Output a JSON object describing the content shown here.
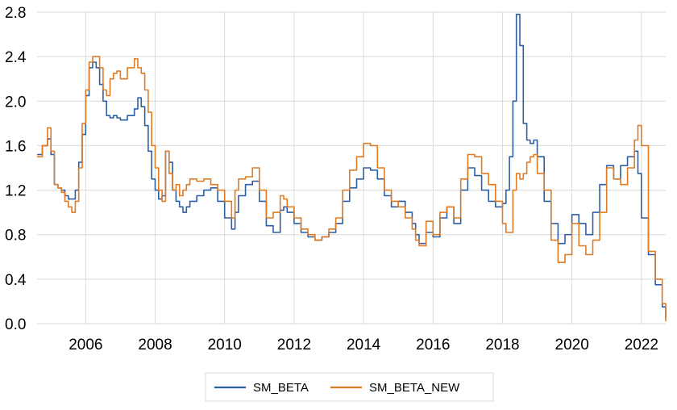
{
  "chart_data": {
    "type": "line",
    "title": "",
    "xlabel": "",
    "ylabel": "",
    "xlim": [
      2004.6,
      2022.7
    ],
    "ylim": [
      0,
      2.8
    ],
    "y_ticks": [
      0.0,
      0.4,
      0.8,
      1.2,
      1.6,
      2.0,
      2.4,
      2.8
    ],
    "y_tick_labels": [
      "0.0",
      "0.4",
      "0.8",
      "1.2",
      "1.6",
      "2.0",
      "2.4",
      "2.8"
    ],
    "x_ticks": [
      2006,
      2008,
      2010,
      2012,
      2014,
      2016,
      2018,
      2020,
      2022
    ],
    "x_tick_labels": [
      "2006",
      "2008",
      "2010",
      "2012",
      "2014",
      "2016",
      "2018",
      "2020",
      "2022"
    ],
    "grid": "vertical-and-horizontal",
    "legend_position": "bottom",
    "series": [
      {
        "name": "SM_BETA",
        "color": "#2e5fa3",
        "x": [
          2004.6,
          2004.75,
          2004.9,
          2005.0,
          2005.1,
          2005.2,
          2005.3,
          2005.4,
          2005.5,
          2005.6,
          2005.7,
          2005.8,
          2005.9,
          2006.0,
          2006.1,
          2006.2,
          2006.3,
          2006.4,
          2006.5,
          2006.6,
          2006.7,
          2006.8,
          2006.9,
          2007.0,
          2007.2,
          2007.4,
          2007.5,
          2007.6,
          2007.7,
          2007.8,
          2007.9,
          2008.0,
          2008.1,
          2008.2,
          2008.3,
          2008.4,
          2008.5,
          2008.6,
          2008.7,
          2008.8,
          2008.9,
          2009.0,
          2009.2,
          2009.4,
          2009.6,
          2009.8,
          2010.0,
          2010.2,
          2010.3,
          2010.4,
          2010.6,
          2010.8,
          2011.0,
          2011.2,
          2011.4,
          2011.6,
          2011.7,
          2011.8,
          2012.0,
          2012.2,
          2012.4,
          2012.6,
          2012.8,
          2013.0,
          2013.2,
          2013.4,
          2013.6,
          2013.8,
          2014.0,
          2014.2,
          2014.4,
          2014.6,
          2014.8,
          2015.0,
          2015.2,
          2015.4,
          2015.5,
          2015.6,
          2015.8,
          2016.0,
          2016.2,
          2016.4,
          2016.6,
          2016.8,
          2017.0,
          2017.2,
          2017.4,
          2017.6,
          2017.8,
          2018.0,
          2018.1,
          2018.2,
          2018.3,
          2018.4,
          2018.5,
          2018.6,
          2018.7,
          2018.8,
          2018.9,
          2019.0,
          2019.2,
          2019.4,
          2019.6,
          2019.8,
          2020.0,
          2020.2,
          2020.4,
          2020.6,
          2020.8,
          2021.0,
          2021.2,
          2021.4,
          2021.6,
          2021.8,
          2021.9,
          2022.0,
          2022.2,
          2022.4,
          2022.6,
          2022.7
        ],
        "y": [
          1.52,
          1.6,
          1.66,
          1.52,
          1.25,
          1.22,
          1.2,
          1.15,
          1.12,
          1.12,
          1.2,
          1.45,
          1.7,
          2.05,
          2.3,
          2.35,
          2.3,
          2.15,
          2.0,
          1.87,
          1.85,
          1.87,
          1.85,
          1.83,
          1.87,
          1.93,
          2.03,
          1.95,
          1.78,
          1.55,
          1.3,
          1.2,
          1.12,
          1.15,
          1.55,
          1.45,
          1.2,
          1.1,
          1.05,
          1.0,
          1.05,
          1.1,
          1.15,
          1.2,
          1.22,
          1.1,
          0.95,
          0.85,
          1.0,
          1.15,
          1.25,
          1.28,
          1.1,
          0.88,
          0.82,
          1.02,
          1.05,
          1.0,
          0.9,
          0.82,
          0.78,
          0.75,
          0.78,
          0.82,
          0.9,
          1.1,
          1.22,
          1.3,
          1.4,
          1.38,
          1.3,
          1.15,
          1.05,
          1.1,
          1.0,
          0.9,
          0.8,
          0.72,
          0.82,
          0.78,
          0.95,
          1.05,
          0.9,
          1.2,
          1.4,
          1.33,
          1.2,
          1.1,
          1.05,
          1.08,
          1.2,
          1.5,
          2.0,
          2.78,
          2.5,
          1.8,
          1.65,
          1.62,
          1.65,
          1.5,
          1.1,
          0.9,
          0.72,
          0.8,
          0.98,
          0.9,
          0.8,
          1.0,
          1.25,
          1.42,
          1.3,
          1.42,
          1.5,
          1.55,
          1.35,
          0.95,
          0.62,
          0.35,
          0.15,
          0.05
        ]
      },
      {
        "name": "SM_BETA_NEW",
        "color": "#e07b24",
        "x": [
          2004.6,
          2004.75,
          2004.9,
          2005.0,
          2005.1,
          2005.2,
          2005.3,
          2005.4,
          2005.5,
          2005.6,
          2005.7,
          2005.8,
          2005.9,
          2006.0,
          2006.1,
          2006.2,
          2006.3,
          2006.4,
          2006.5,
          2006.6,
          2006.7,
          2006.8,
          2006.9,
          2007.0,
          2007.2,
          2007.4,
          2007.5,
          2007.6,
          2007.7,
          2007.8,
          2007.9,
          2008.0,
          2008.1,
          2008.2,
          2008.3,
          2008.4,
          2008.5,
          2008.6,
          2008.7,
          2008.8,
          2008.9,
          2009.0,
          2009.2,
          2009.4,
          2009.6,
          2009.8,
          2010.0,
          2010.2,
          2010.3,
          2010.4,
          2010.6,
          2010.8,
          2011.0,
          2011.2,
          2011.4,
          2011.6,
          2011.7,
          2011.8,
          2012.0,
          2012.2,
          2012.4,
          2012.6,
          2012.8,
          2013.0,
          2013.2,
          2013.4,
          2013.6,
          2013.8,
          2014.0,
          2014.2,
          2014.4,
          2014.6,
          2014.8,
          2015.0,
          2015.2,
          2015.4,
          2015.5,
          2015.6,
          2015.8,
          2016.0,
          2016.2,
          2016.4,
          2016.6,
          2016.8,
          2017.0,
          2017.2,
          2017.4,
          2017.6,
          2017.8,
          2018.0,
          2018.1,
          2018.2,
          2018.3,
          2018.4,
          2018.5,
          2018.6,
          2018.7,
          2018.8,
          2018.9,
          2019.0,
          2019.2,
          2019.4,
          2019.6,
          2019.8,
          2020.0,
          2020.2,
          2020.4,
          2020.6,
          2020.8,
          2021.0,
          2021.2,
          2021.4,
          2021.6,
          2021.8,
          2021.9,
          2022.0,
          2022.2,
          2022.4,
          2022.6,
          2022.7
        ],
        "y": [
          1.5,
          1.6,
          1.76,
          1.55,
          1.25,
          1.22,
          1.18,
          1.1,
          1.05,
          1.0,
          1.1,
          1.4,
          1.8,
          2.1,
          2.35,
          2.4,
          2.4,
          2.3,
          2.1,
          2.05,
          2.2,
          2.25,
          2.27,
          2.2,
          2.3,
          2.38,
          2.3,
          2.25,
          2.1,
          1.9,
          1.6,
          1.4,
          1.2,
          1.1,
          1.55,
          1.35,
          1.2,
          1.25,
          1.15,
          1.2,
          1.25,
          1.3,
          1.28,
          1.3,
          1.25,
          1.2,
          1.1,
          0.95,
          1.2,
          1.3,
          1.32,
          1.4,
          1.2,
          0.95,
          1.0,
          1.15,
          1.12,
          1.05,
          0.95,
          0.85,
          0.8,
          0.75,
          0.78,
          0.85,
          0.95,
          1.2,
          1.38,
          1.5,
          1.62,
          1.6,
          1.4,
          1.2,
          1.1,
          1.05,
          0.95,
          0.85,
          0.75,
          0.7,
          0.92,
          0.8,
          1.0,
          1.05,
          0.95,
          1.3,
          1.52,
          1.5,
          1.35,
          1.25,
          1.1,
          0.9,
          0.82,
          0.82,
          1.2,
          1.35,
          1.3,
          1.35,
          1.45,
          1.5,
          1.52,
          1.35,
          1.2,
          0.75,
          0.55,
          0.62,
          0.9,
          0.7,
          0.62,
          0.75,
          1.0,
          1.4,
          1.3,
          1.25,
          1.4,
          1.65,
          1.78,
          1.6,
          0.65,
          0.4,
          0.18,
          0.02
        ]
      }
    ]
  }
}
